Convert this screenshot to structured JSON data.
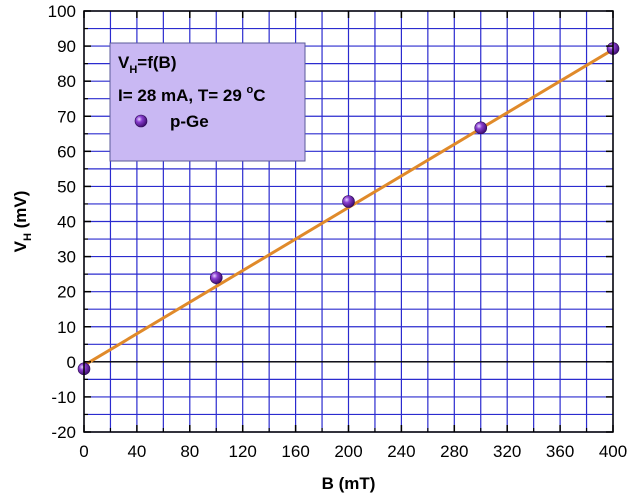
{
  "chart_data": {
    "type": "scatter",
    "xlabel": "B (mT)",
    "ylabel": {
      "main": "V",
      "sub": "H",
      "rest": " (mV)"
    },
    "xlim": [
      0,
      400
    ],
    "ylim": [
      -20,
      100
    ],
    "x_ticks": [
      0,
      40,
      80,
      120,
      160,
      200,
      240,
      280,
      320,
      360,
      400
    ],
    "y_ticks": [
      -20,
      -10,
      0,
      10,
      20,
      30,
      40,
      50,
      60,
      70,
      80,
      90,
      100
    ],
    "x_minor_step": 20,
    "y_minor_step": 5,
    "grid": true,
    "legend": {
      "position": "top-left",
      "line1": {
        "main": "V",
        "sub": "H",
        "rest": "=f(B)"
      },
      "line2": {
        "text": "I= 28 mA, T= 29 ",
        "sup": "o",
        "unit": "C"
      },
      "series_label": "p-Ge"
    },
    "series": [
      {
        "name": "p-Ge",
        "x": [
          0,
          100,
          200,
          300,
          400
        ],
        "y": [
          -2,
          24,
          45.7,
          66.7,
          89.3
        ]
      }
    ],
    "fit_line": {
      "x": [
        0,
        400
      ],
      "y": [
        -1,
        89
      ]
    },
    "colors": {
      "grid": "#2b2bcf",
      "fit": "#e08a2a",
      "marker": "#5a189a",
      "legend_bg": "#c9b8f3",
      "zero_line": "#000000"
    }
  }
}
